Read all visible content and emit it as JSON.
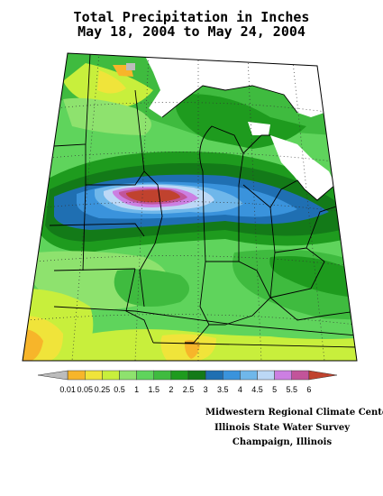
{
  "title": {
    "line1": "Total Precipitation in Inches",
    "line2": "May 18, 2004 to May 24, 2004"
  },
  "legend": {
    "labels": [
      "0.01",
      "0.05",
      "0.25",
      "0.5",
      "1",
      "1.5",
      "2",
      "2.5",
      "3",
      "3.5",
      "4",
      "4.5",
      "5",
      "5.5",
      "6"
    ],
    "colors": [
      "#bcbcbc",
      "#f7b52a",
      "#f0e43a",
      "#c8ef3c",
      "#8ee26e",
      "#5fd45c",
      "#3fbb3f",
      "#1e9b1e",
      "#137a18",
      "#1f6fb2",
      "#3a93dc",
      "#6fb7ea",
      "#bcd8f6",
      "#cc7fe2",
      "#c2549a",
      "#c0422e"
    ]
  },
  "credits": [
    "Midwestern Regional Climate Center",
    "Illinois State Water Survey",
    "Champaign, Illinois"
  ]
}
